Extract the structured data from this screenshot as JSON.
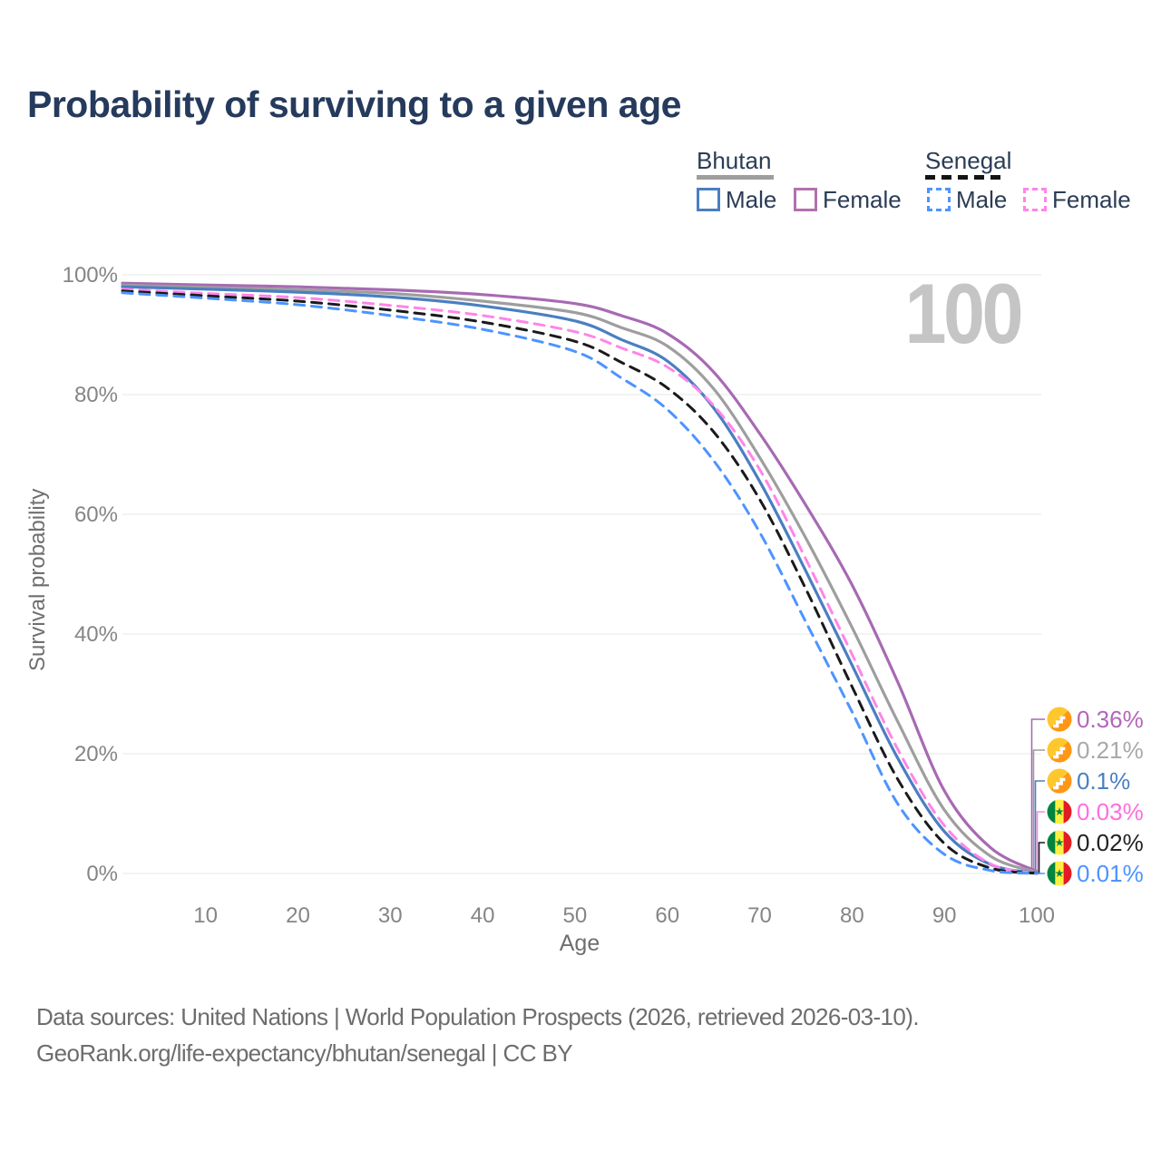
{
  "header": {
    "title": "Probability of surviving to a given age"
  },
  "legend": {
    "groups": [
      {
        "country": "Bhutan",
        "line_style": "solid",
        "rule_color": "#9e9e9e",
        "items": [
          {
            "label": "Male",
            "color": "#4a7fc1",
            "dashed": false
          },
          {
            "label": "Female",
            "color": "#b271ae",
            "dashed": false
          }
        ]
      },
      {
        "country": "Senegal",
        "line_style": "dashed",
        "rule_color": "#141414",
        "items": [
          {
            "label": "Male",
            "color": "#4d94ff",
            "dashed": true
          },
          {
            "label": "Female",
            "color": "#ff85e8",
            "dashed": true
          }
        ]
      }
    ]
  },
  "chart_data": {
    "type": "line",
    "title": "Probability of surviving to a given age",
    "xlabel": "Age",
    "ylabel": "Survival probability",
    "xlim": [
      1,
      100
    ],
    "ylim": [
      0,
      100
    ],
    "x_ticks": [
      10,
      20,
      30,
      40,
      50,
      60,
      70,
      80,
      90,
      100
    ],
    "y_ticks": [
      0,
      20,
      40,
      60,
      80,
      100
    ],
    "y_tick_suffix": "%",
    "grid": "horizontal",
    "legend_position": "top-right",
    "watermark": "100",
    "x": [
      1,
      10,
      20,
      30,
      40,
      50,
      55,
      60,
      65,
      70,
      75,
      80,
      85,
      90,
      95,
      100
    ],
    "series": [
      {
        "name": "Bhutan Female",
        "country": "Bhutan",
        "sex": "Female",
        "style": "solid",
        "color": "#a76ab2",
        "label_color": "#b465bb",
        "flag": "bhutan-flag-icon",
        "end_label": "0.36%",
        "values": [
          98.6,
          98.3,
          98.0,
          97.5,
          96.7,
          95.2,
          93.2,
          90.2,
          83.8,
          73.5,
          61.5,
          48.2,
          31.8,
          13.8,
          4.3,
          0.36
        ]
      },
      {
        "name": "Bhutan",
        "country": "Bhutan",
        "sex": "Both",
        "style": "solid",
        "color": "#9e9e9e",
        "label_color": "#a9a9a9",
        "flag": "bhutan-flag-icon",
        "end_label": "0.21%",
        "values": [
          98.3,
          97.9,
          97.5,
          96.9,
          95.6,
          93.7,
          91.2,
          88.1,
          81.0,
          69.5,
          56.0,
          41.1,
          25.2,
          10.6,
          2.9,
          0.21
        ]
      },
      {
        "name": "Bhutan Male",
        "country": "Bhutan",
        "sex": "Male",
        "style": "solid",
        "color": "#4a7fc1",
        "label_color": "#4a7fc1",
        "flag": "bhutan-flag-icon",
        "end_label": "0.1%",
        "values": [
          98.0,
          97.6,
          97.1,
          96.3,
          94.8,
          92.3,
          89.2,
          85.6,
          77.8,
          65.5,
          50.5,
          34.8,
          19.1,
          7.0,
          1.5,
          0.1
        ]
      },
      {
        "name": "Senegal Female",
        "country": "Senegal",
        "sex": "Female",
        "style": "dashed",
        "color": "#ff85e8",
        "label_color": "#ff6ede",
        "flag": "senegal-flag-icon",
        "end_label": "0.03%",
        "values": [
          97.6,
          96.9,
          96.2,
          94.9,
          93.2,
          90.5,
          87.8,
          84.6,
          78.2,
          67.5,
          52.5,
          36.6,
          20.6,
          8.0,
          1.6,
          0.03
        ]
      },
      {
        "name": "Senegal",
        "country": "Senegal",
        "sex": "Both",
        "style": "dashed",
        "color": "#1a1a1a",
        "label_color": "#222222",
        "flag": "senegal-flag-icon",
        "end_label": "0.02%",
        "values": [
          97.3,
          96.5,
          95.6,
          94.1,
          92.1,
          88.9,
          85.4,
          81.1,
          73.8,
          62.5,
          47.5,
          31.2,
          15.6,
          5.0,
          0.9,
          0.02
        ]
      },
      {
        "name": "Senegal Male",
        "country": "Senegal",
        "sex": "Male",
        "style": "dashed",
        "color": "#4d94ff",
        "label_color": "#4d94ff",
        "flag": "senegal-flag-icon",
        "end_label": "0.01%",
        "values": [
          97.0,
          96.1,
          95.0,
          93.2,
          90.9,
          87.2,
          82.8,
          77.5,
          69.0,
          57.0,
          42.0,
          27.0,
          11.5,
          3.2,
          0.5,
          0.01
        ]
      }
    ]
  },
  "footer": {
    "line1": "Data sources: United Nations | World Population Prospects (2026, retrieved 2026-03-10).",
    "line2": "GeoRank.org/life-expectancy/bhutan/senegal | CC BY"
  }
}
